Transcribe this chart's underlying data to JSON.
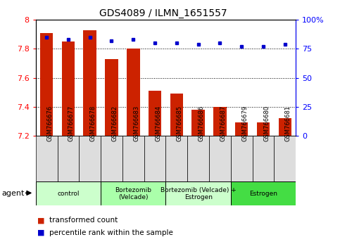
{
  "title": "GDS4089 / ILMN_1651557",
  "samples": [
    "GSM766676",
    "GSM766677",
    "GSM766678",
    "GSM766682",
    "GSM766683",
    "GSM766684",
    "GSM766685",
    "GSM766686",
    "GSM766687",
    "GSM766679",
    "GSM766680",
    "GSM766681"
  ],
  "bar_values": [
    7.91,
    7.85,
    7.93,
    7.73,
    7.8,
    7.51,
    7.49,
    7.38,
    7.4,
    7.29,
    7.29,
    7.32
  ],
  "dot_values": [
    85,
    83,
    85,
    82,
    83,
    80,
    80,
    79,
    80,
    77,
    77,
    79
  ],
  "bar_color": "#CC2200",
  "dot_color": "#0000CC",
  "ylim_left": [
    7.2,
    8.0
  ],
  "ylim_right": [
    0,
    100
  ],
  "yticks_left": [
    7.2,
    7.4,
    7.6,
    7.8,
    8.0
  ],
  "ytick_labels_left": [
    "7.2",
    "7.4",
    "7.6",
    "7.8",
    "8"
  ],
  "yticks_right": [
    0,
    25,
    50,
    75,
    100
  ],
  "ytick_labels_right": [
    "0",
    "25",
    "50",
    "75",
    "100%"
  ],
  "grid_values": [
    7.4,
    7.6,
    7.8,
    8.0
  ],
  "groups": [
    {
      "label": "control",
      "start": 0,
      "end": 3,
      "color": "#CCFFCC"
    },
    {
      "label": "Bortezomib\n(Velcade)",
      "start": 3,
      "end": 6,
      "color": "#AAFFAA"
    },
    {
      "label": "Bortezomib (Velcade) +\nEstrogen",
      "start": 6,
      "end": 9,
      "color": "#CCFFCC"
    },
    {
      "label": "Estrogen",
      "start": 9,
      "end": 12,
      "color": "#44DD44"
    }
  ],
  "agent_label": "agent",
  "legend_bar_label": "transformed count",
  "legend_dot_label": "percentile rank within the sample",
  "bar_width": 0.6,
  "bg_color": "#FFFFFF",
  "xtick_bg": "#DDDDDD"
}
